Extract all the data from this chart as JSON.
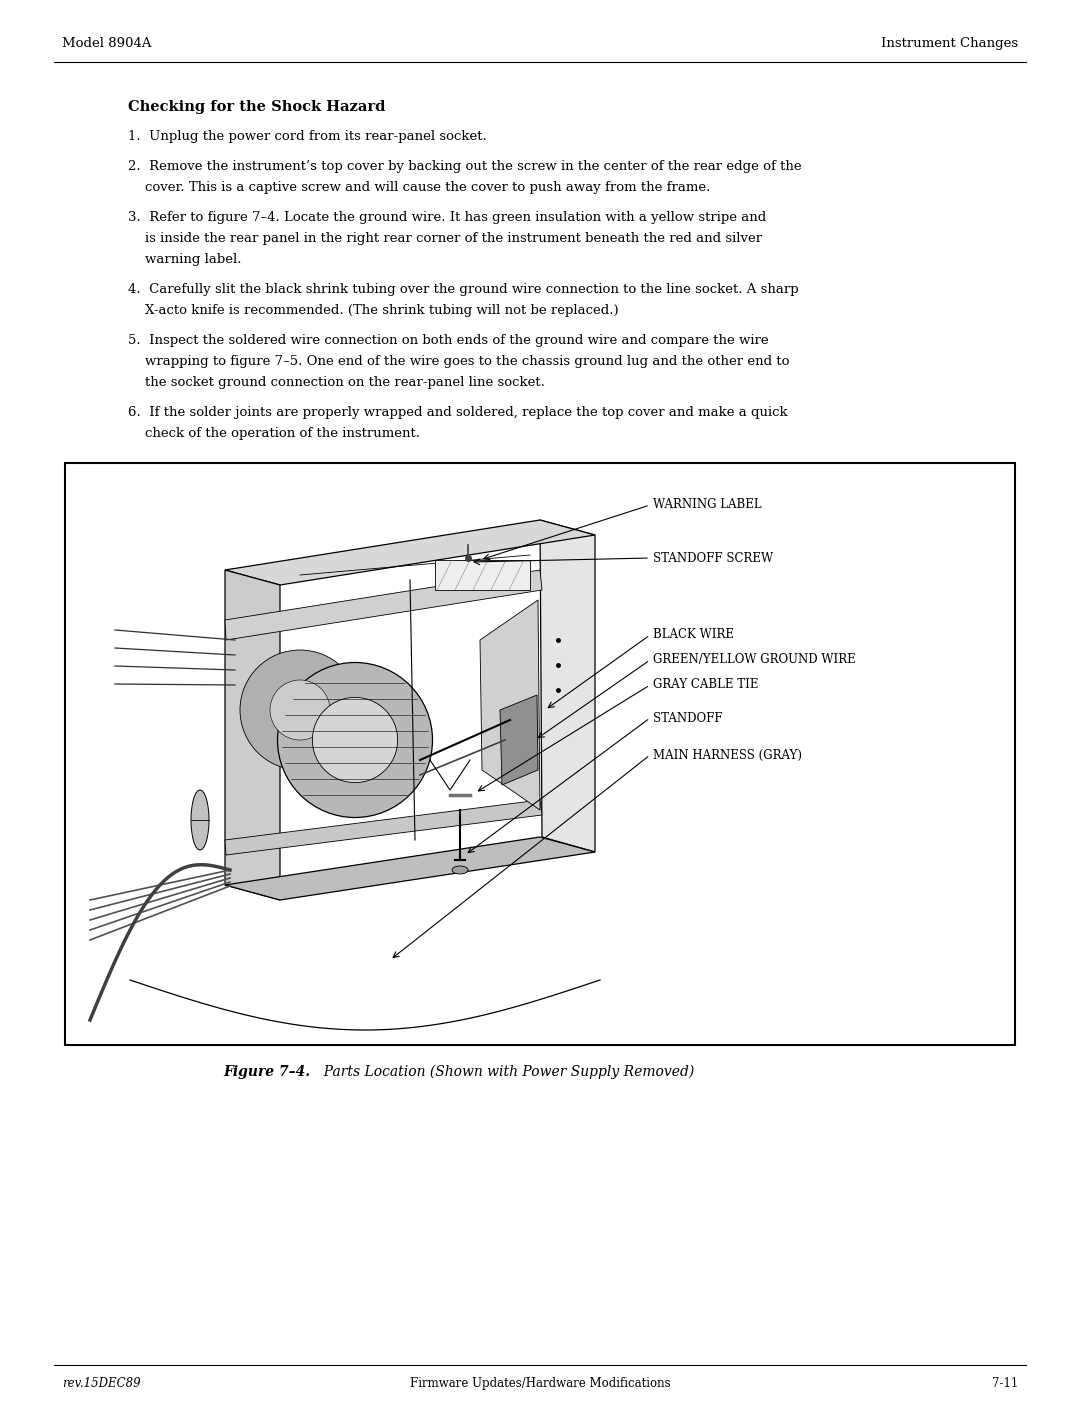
{
  "page_width": 10.8,
  "page_height": 14.01,
  "bg_color": "#ffffff",
  "header_left": "Model 8904A",
  "header_right": "Instrument Changes",
  "footer_left": "rev.15DEC89",
  "footer_center": "Firmware Updates/Hardware Modifications",
  "footer_right": "7-11",
  "section_title": "Checking for the Shock Hazard",
  "item1": "1.  Unplug the power cord from its rear-panel socket.",
  "item2a": "2.  Remove the instrument’s top cover by backing out the screw in the center of the rear edge of the",
  "item2b": "    cover. This is a captive screw and will cause the cover to push away from the frame.",
  "item3a": "3.  Refer to figure 7–4. Locate the ground wire. It has green insulation with a yellow stripe and",
  "item3b": "    is inside the rear panel in the right rear corner of the instrument beneath the red and silver",
  "item3c": "    warning label.",
  "item4a": "4.  Carefully slit the black shrink tubing over the ground wire connection to the line socket. A sharp",
  "item4b": "    X-acto knife is recommended. (The shrink tubing will not be replaced.)",
  "item5a": "5.  Inspect the soldered wire connection on both ends of the ground wire and compare the wire",
  "item5b": "    wrapping to figure 7–5. One end of the wire goes to the chassis ground lug and the other end to",
  "item5c": "    the socket ground connection on the rear-panel line socket.",
  "item6a": "6.  If the solder joints are properly wrapped and soldered, replace the top cover and make a quick",
  "item6b": "    check of the operation of the instrument.",
  "fig_caption_bold": "Figure 7–4.",
  "fig_caption_italic": "  Parts Location (Shown with Power Supply Removed)",
  "label_warning": "WARNING LABEL",
  "label_standoff_screw": "STANDOFF SCREW",
  "label_black_wire": "BLACK WIRE",
  "label_green_wire": "GREEN/YELLOW GROUND WIRE",
  "label_cable_tie": "GRAY CABLE TIE",
  "label_standoff": "STANDOFF",
  "label_harness": "MAIN HARNESS (GRAY)"
}
